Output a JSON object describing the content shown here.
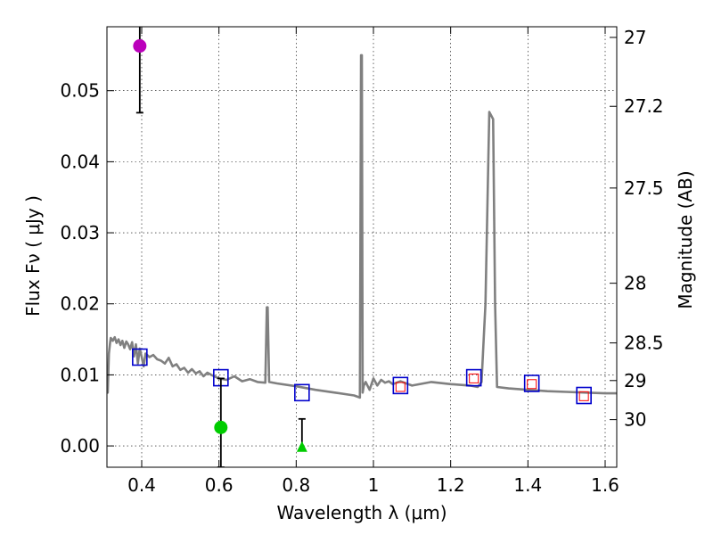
{
  "chart_data": {
    "type": "scatter",
    "xlabel": "Wavelength  λ (μm)",
    "ylabel": "Flux  Fν  ( μJy )",
    "y2label": "Magnitude (AB)",
    "xlim": [
      0.31,
      1.63
    ],
    "ylim": [
      -0.003,
      0.059
    ],
    "grid": true,
    "x_ticks": [
      0.4,
      0.6,
      0.8,
      1.0,
      1.2,
      1.4,
      1.6
    ],
    "x_tick_labels": [
      "0.4",
      "0.6",
      "0.8",
      "1",
      "1.2",
      "1.4",
      "1.6"
    ],
    "y_ticks": [
      0.0,
      0.01,
      0.02,
      0.03,
      0.04,
      0.05
    ],
    "y_tick_labels": [
      "0.00",
      "0.01",
      "0.02",
      "0.03",
      "0.04",
      "0.05"
    ],
    "y2_ticks": [
      {
        "label": "27",
        "flux": 0.0575
      },
      {
        "label": "27.2",
        "flux": 0.0478
      },
      {
        "label": "27.5",
        "flux": 0.0363
      },
      {
        "label": "28",
        "flux": 0.0229
      },
      {
        "label": "28.5",
        "flux": 0.0145
      },
      {
        "label": "29",
        "flux": 0.0092
      },
      {
        "label": "30",
        "flux": 0.0037
      }
    ],
    "series": [
      {
        "name": "model spectrum",
        "kind": "line",
        "color": "#808080",
        "x": [
          0.31,
          0.312,
          0.315,
          0.318,
          0.32,
          0.325,
          0.33,
          0.335,
          0.34,
          0.345,
          0.35,
          0.355,
          0.36,
          0.365,
          0.37,
          0.375,
          0.38,
          0.385,
          0.39,
          0.395,
          0.4,
          0.405,
          0.41,
          0.42,
          0.43,
          0.44,
          0.45,
          0.46,
          0.47,
          0.48,
          0.49,
          0.5,
          0.51,
          0.52,
          0.53,
          0.54,
          0.55,
          0.56,
          0.57,
          0.58,
          0.6,
          0.62,
          0.64,
          0.66,
          0.68,
          0.7,
          0.72,
          0.724,
          0.726,
          0.73,
          0.75,
          0.8,
          0.85,
          0.9,
          0.95,
          0.965,
          0.968,
          0.97,
          0.972,
          0.975,
          0.98,
          0.99,
          1.0,
          1.01,
          1.02,
          1.03,
          1.04,
          1.05,
          1.07,
          1.1,
          1.15,
          1.2,
          1.25,
          1.27,
          1.28,
          1.29,
          1.3,
          1.31,
          1.315,
          1.32,
          1.35,
          1.4,
          1.45,
          1.5,
          1.55,
          1.6,
          1.63
        ],
        "y": [
          0.009,
          0.0075,
          0.013,
          0.0145,
          0.0152,
          0.0148,
          0.0153,
          0.0145,
          0.015,
          0.0142,
          0.0148,
          0.0138,
          0.0147,
          0.0143,
          0.0136,
          0.0146,
          0.0126,
          0.0143,
          0.0116,
          0.0137,
          0.0125,
          0.0112,
          0.013,
          0.0125,
          0.0128,
          0.0122,
          0.012,
          0.0116,
          0.0124,
          0.0112,
          0.0115,
          0.0107,
          0.011,
          0.0103,
          0.0108,
          0.0102,
          0.0105,
          0.0098,
          0.0103,
          0.01,
          0.0095,
          0.0093,
          0.0098,
          0.0091,
          0.0094,
          0.009,
          0.0089,
          0.0195,
          0.0195,
          0.009,
          0.0088,
          0.0084,
          0.0079,
          0.0075,
          0.0071,
          0.0068,
          0.055,
          0.055,
          0.0075,
          0.0085,
          0.009,
          0.0079,
          0.0095,
          0.0085,
          0.0093,
          0.0089,
          0.0091,
          0.0087,
          0.0091,
          0.0085,
          0.009,
          0.0087,
          0.0085,
          0.0083,
          0.009,
          0.02,
          0.047,
          0.046,
          0.02,
          0.0083,
          0.0081,
          0.0079,
          0.0077,
          0.0076,
          0.0075,
          0.0074,
          0.0074
        ]
      },
      {
        "name": "model photometry",
        "kind": "open squares",
        "color": "#0000cc",
        "x": [
          0.395,
          0.605,
          0.815,
          1.07,
          1.26,
          1.41,
          1.545
        ],
        "y": [
          0.0125,
          0.0096,
          0.0075,
          0.0085,
          0.0096,
          0.0088,
          0.0071
        ]
      },
      {
        "name": "observed fluxes",
        "kind": "small open squares",
        "color": "#ff0000",
        "x": [
          1.07,
          1.26,
          1.41,
          1.545
        ],
        "y": [
          0.0083,
          0.0095,
          0.0087,
          0.007
        ]
      },
      {
        "name": "magenta point",
        "kind": "circle",
        "color": "#bb00bb",
        "x": [
          0.395
        ],
        "y": [
          0.0563
        ],
        "err_low": [
          0.0469
        ],
        "err_high": [
          0.0593
        ]
      },
      {
        "name": "green point",
        "kind": "circle",
        "color": "#00cc00",
        "x": [
          0.605
        ],
        "y": [
          0.0026
        ],
        "err_low": [
          -0.003
        ],
        "err_high": [
          0.0095
        ]
      },
      {
        "name": "green upper limit",
        "kind": "triangle",
        "color": "#00cc00",
        "x": [
          0.815
        ],
        "y": [
          -0.0002
        ],
        "err_low": [
          -0.0005
        ],
        "err_high": [
          0.0038
        ]
      }
    ]
  }
}
